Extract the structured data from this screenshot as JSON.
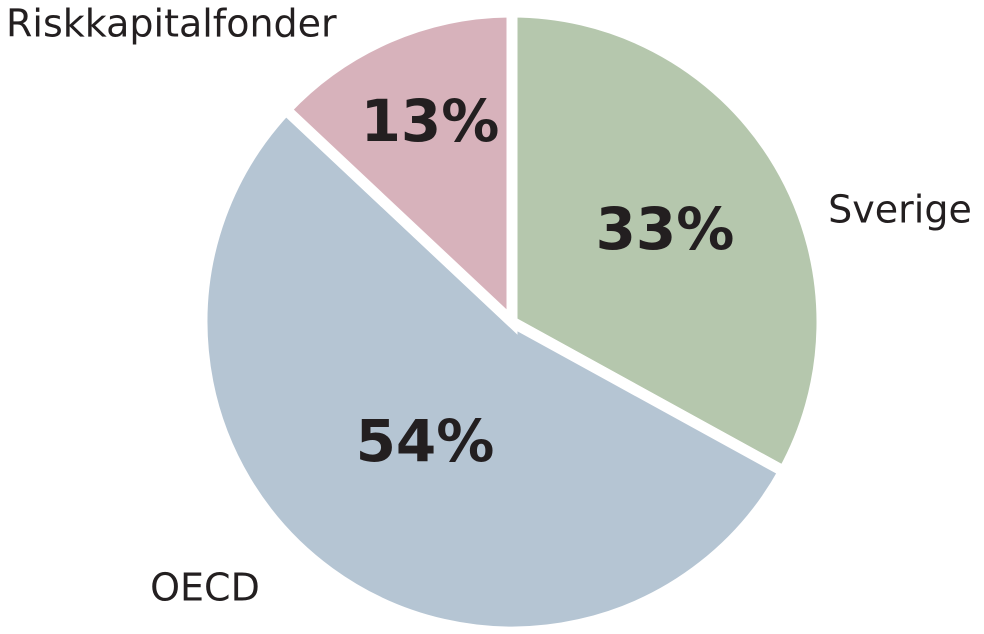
{
  "chart_data": {
    "type": "pie",
    "categories": [
      "Sverige",
      "OECD",
      "Riskkapitalfonder"
    ],
    "values": [
      33,
      54,
      13
    ],
    "value_labels": [
      "33%",
      "54%",
      "13%"
    ],
    "unit": "%",
    "colors": [
      "#b5c7ad",
      "#b5c5d3",
      "#d7b2bb"
    ],
    "start": "12 o'clock",
    "direction": "clockwise",
    "legend": "none (direct labels)"
  }
}
